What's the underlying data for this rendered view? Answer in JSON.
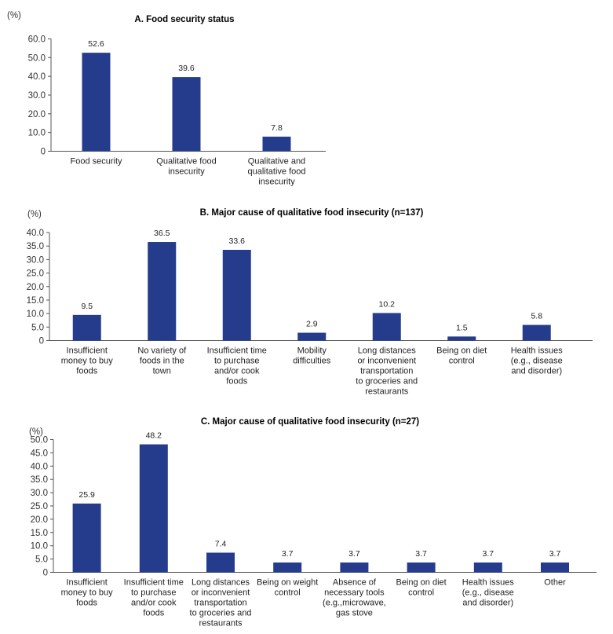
{
  "chart_data": [
    {
      "type": "bar",
      "title": "A. Food security status",
      "ylabel": "(%)",
      "ylim": [
        0,
        60
      ],
      "yticks": [
        "60.0",
        "50.0",
        "40.0",
        "30.0",
        "20.0",
        "10.0",
        "0"
      ],
      "bar_color": "#253c8c",
      "categories": [
        [
          "Food security"
        ],
        [
          "Qualitative food",
          "insecurity"
        ],
        [
          "Qualitative and",
          "qualitative food",
          "insecurity"
        ]
      ],
      "values": [
        52.6,
        39.6,
        7.8
      ],
      "value_labels": [
        "52.6",
        "39.6",
        "7.8"
      ]
    },
    {
      "type": "bar",
      "title": "B. Major cause of qualitative food insecurity (n=137)",
      "ylabel": "(%)",
      "ylim": [
        0,
        40
      ],
      "yticks": [
        "40.0",
        "35.0",
        "30.0",
        "25.0",
        "20.0",
        "15.0",
        "10.0",
        "5.0",
        "0"
      ],
      "bar_color": "#253c8c",
      "categories": [
        [
          "Insufficient",
          "money to buy",
          "foods"
        ],
        [
          "No variety of",
          "foods in the",
          "town"
        ],
        [
          "Insufficient time",
          "to purchase",
          "and/or cook",
          "foods"
        ],
        [
          "Mobility",
          "difficulties"
        ],
        [
          "Long distances",
          "or inconvenient",
          "transportation",
          "to groceries and",
          "restaurants"
        ],
        [
          "Being on diet",
          "control"
        ],
        [
          "Health issues",
          "(e.g., disease",
          "and disorder)"
        ]
      ],
      "values": [
        9.5,
        36.5,
        33.6,
        2.9,
        10.2,
        1.5,
        5.8
      ],
      "value_labels": [
        "9.5",
        "36.5",
        "33.6",
        "2.9",
        "10.2",
        "1.5",
        "5.8"
      ]
    },
    {
      "type": "bar",
      "title": "C. Major cause of qualitative food insecurity (n=27)",
      "ylabel": "(%)",
      "ylim": [
        0,
        50
      ],
      "yticks": [
        "50.0",
        "45.0",
        "40.0",
        "35.0",
        "30.0",
        "25.0",
        "20.0",
        "15.0",
        "10.0",
        "5.0",
        "0"
      ],
      "bar_color": "#253c8c",
      "categories": [
        [
          "Insufficient",
          "money to buy",
          "foods"
        ],
        [
          "Insufficient time",
          "to purchase",
          "and/or cook",
          "foods"
        ],
        [
          "Long distances",
          "or inconvenient",
          "transportation",
          "to groceries and",
          "restaurants"
        ],
        [
          "Being on weight",
          "control"
        ],
        [
          "Absence of",
          "necessary tools",
          "(e.g.,microwave,",
          "gas stove"
        ],
        [
          "Being on diet",
          "control"
        ],
        [
          "Health issues",
          "(e.g., disease",
          "and disorder)"
        ],
        [
          "Other"
        ]
      ],
      "values": [
        25.9,
        48.2,
        7.4,
        3.7,
        3.7,
        3.7,
        3.7,
        3.7
      ],
      "value_labels": [
        "25.9",
        "48.2",
        "7.4",
        "3.7",
        "3.7",
        "3.7",
        "3.7",
        "3.7"
      ]
    }
  ]
}
